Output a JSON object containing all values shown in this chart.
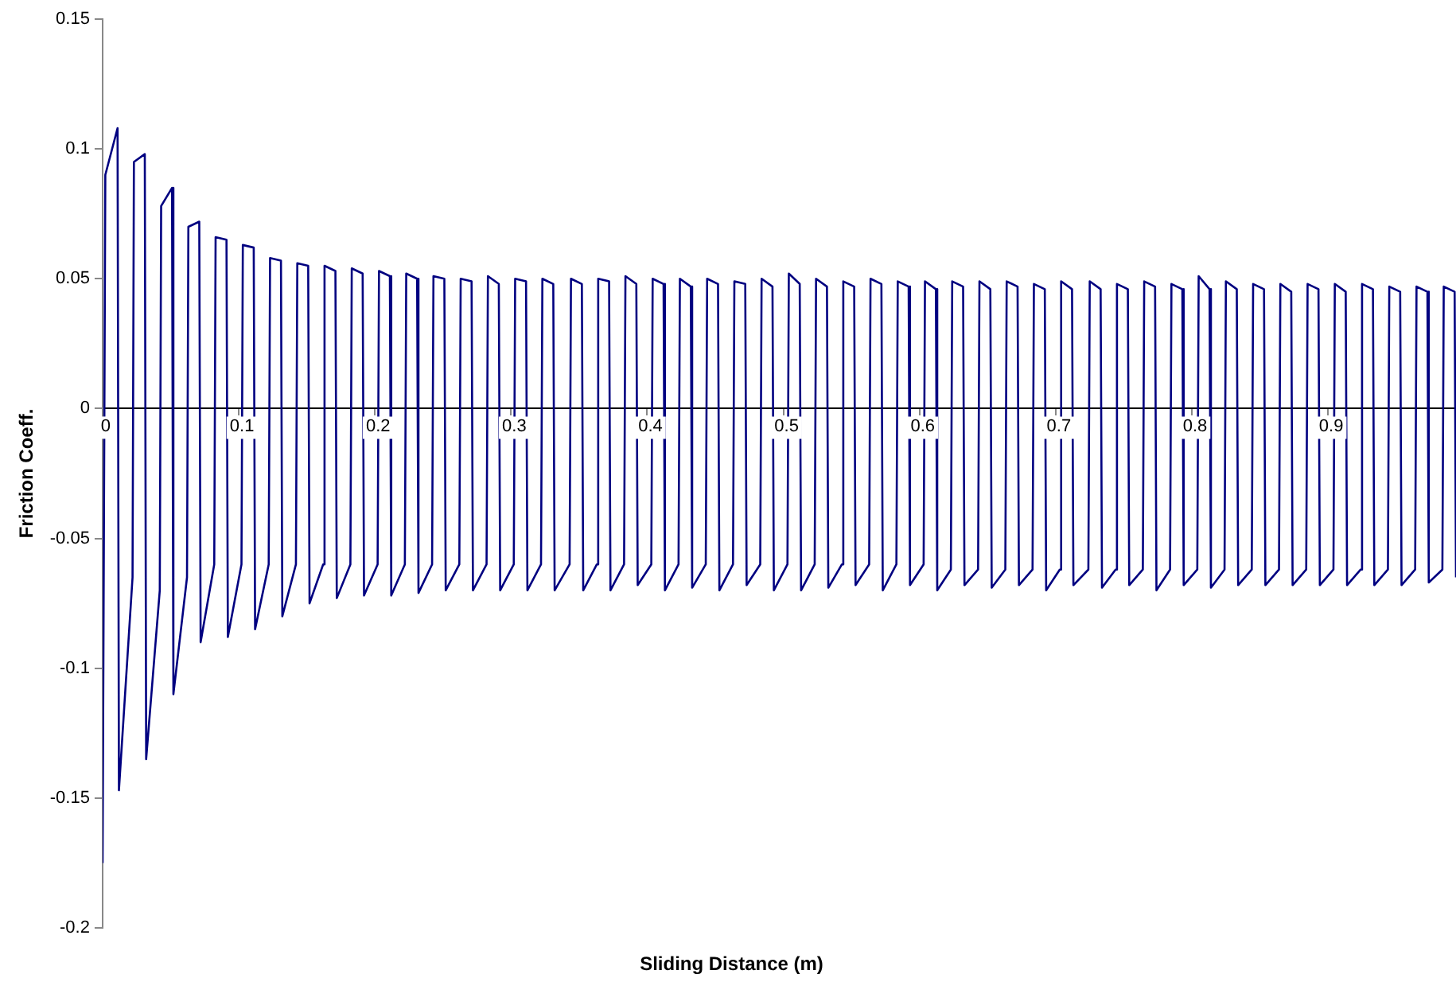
{
  "chart_data": {
    "type": "line",
    "xlabel": "Sliding Distance (m)",
    "ylabel": "Friction Coeff.",
    "xlim": [
      0,
      0.994
    ],
    "xticks": [
      0,
      0.1,
      0.2,
      0.3,
      0.4,
      0.5,
      0.6,
      0.7,
      0.8,
      0.9
    ],
    "ylim": [
      -0.2,
      0.15
    ],
    "yticks": [
      -0.2,
      -0.15,
      -0.1,
      -0.05,
      0,
      0.05,
      0.1,
      0.15
    ],
    "grid": false,
    "legend": false,
    "marker": "none",
    "line_style": "solid",
    "series": [
      {
        "color": "#000080",
        "x": [
          0,
          0.002,
          0.011,
          0.012,
          0.022,
          0.023,
          0.031,
          0.032,
          0.042,
          0.043,
          0.051,
          0.052,
          0.062,
          0.063,
          0.071,
          0.072,
          0.082,
          0.083,
          0.091,
          0.092,
          0.102,
          0.103,
          0.111,
          0.112,
          0.122,
          0.123,
          0.131,
          0.132,
          0.142,
          0.143,
          0.151,
          0.152,
          0.162,
          0.163,
          0.171,
          0.172,
          0.182,
          0.183,
          0.191,
          0.192,
          0.202,
          0.203,
          0.211,
          0.212,
          0.222,
          0.223,
          0.231,
          0.232,
          0.242,
          0.243,
          0.251,
          0.252,
          0.262,
          0.263,
          0.271,
          0.272,
          0.282,
          0.283,
          0.291,
          0.292,
          0.302,
          0.303,
          0.311,
          0.312,
          0.322,
          0.323,
          0.331,
          0.332,
          0.343,
          0.344,
          0.352,
          0.353,
          0.363,
          0.364,
          0.372,
          0.373,
          0.383,
          0.384,
          0.392,
          0.393,
          0.403,
          0.404,
          0.412,
          0.413,
          0.423,
          0.424,
          0.432,
          0.433,
          0.443,
          0.444,
          0.452,
          0.453,
          0.463,
          0.464,
          0.472,
          0.473,
          0.483,
          0.484,
          0.492,
          0.493,
          0.503,
          0.504,
          0.512,
          0.513,
          0.523,
          0.524,
          0.532,
          0.533,
          0.543,
          0.544,
          0.552,
          0.553,
          0.563,
          0.564,
          0.572,
          0.573,
          0.583,
          0.584,
          0.592,
          0.593,
          0.603,
          0.604,
          0.612,
          0.613,
          0.623,
          0.624,
          0.632,
          0.633,
          0.643,
          0.644,
          0.652,
          0.653,
          0.663,
          0.664,
          0.672,
          0.673,
          0.683,
          0.684,
          0.692,
          0.693,
          0.703,
          0.704,
          0.712,
          0.713,
          0.724,
          0.725,
          0.733,
          0.734,
          0.744,
          0.745,
          0.753,
          0.754,
          0.764,
          0.765,
          0.773,
          0.774,
          0.784,
          0.785,
          0.793,
          0.794,
          0.804,
          0.805,
          0.813,
          0.814,
          0.824,
          0.825,
          0.833,
          0.834,
          0.844,
          0.845,
          0.853,
          0.854,
          0.864,
          0.865,
          0.873,
          0.874,
          0.884,
          0.885,
          0.893,
          0.894,
          0.904,
          0.905,
          0.913,
          0.914,
          0.924,
          0.925,
          0.933,
          0.934,
          0.944,
          0.945,
          0.953,
          0.954,
          0.964,
          0.965,
          0.973,
          0.974,
          0.984,
          0.985,
          0.993,
          0.994
        ],
        "values": [
          -0.175,
          0.09,
          0.108,
          -0.147,
          -0.065,
          0.095,
          0.098,
          -0.135,
          -0.07,
          0.078,
          0.085,
          -0.11,
          -0.065,
          0.07,
          0.072,
          -0.09,
          -0.06,
          0.066,
          0.065,
          -0.088,
          -0.06,
          0.063,
          0.062,
          -0.085,
          -0.06,
          0.058,
          0.057,
          -0.08,
          -0.06,
          0.056,
          0.055,
          -0.075,
          -0.06,
          0.055,
          0.053,
          -0.073,
          -0.06,
          0.054,
          0.052,
          -0.072,
          -0.06,
          0.053,
          0.051,
          -0.072,
          -0.06,
          0.052,
          0.05,
          -0.071,
          -0.06,
          0.051,
          0.05,
          -0.07,
          -0.06,
          0.05,
          0.049,
          -0.07,
          -0.06,
          0.051,
          0.048,
          -0.07,
          -0.06,
          0.05,
          0.049,
          -0.07,
          -0.06,
          0.05,
          0.048,
          -0.07,
          -0.06,
          0.05,
          0.048,
          -0.07,
          -0.06,
          0.05,
          0.049,
          -0.07,
          -0.06,
          0.051,
          0.048,
          -0.068,
          -0.06,
          0.05,
          0.048,
          -0.07,
          -0.06,
          0.05,
          0.047,
          -0.069,
          -0.06,
          0.05,
          0.048,
          -0.07,
          -0.06,
          0.049,
          0.048,
          -0.068,
          -0.06,
          0.05,
          0.047,
          -0.07,
          -0.06,
          0.052,
          0.048,
          -0.07,
          -0.06,
          0.05,
          0.047,
          -0.069,
          -0.06,
          0.049,
          0.047,
          -0.068,
          -0.06,
          0.05,
          0.048,
          -0.07,
          -0.06,
          0.049,
          0.047,
          -0.068,
          -0.06,
          0.049,
          0.046,
          -0.07,
          -0.062,
          0.049,
          0.047,
          -0.068,
          -0.062,
          0.049,
          0.046,
          -0.069,
          -0.062,
          0.049,
          0.047,
          -0.068,
          -0.062,
          0.048,
          0.046,
          -0.07,
          -0.062,
          0.049,
          0.046,
          -0.068,
          -0.062,
          0.049,
          0.046,
          -0.069,
          -0.062,
          0.048,
          0.046,
          -0.068,
          -0.062,
          0.049,
          0.047,
          -0.07,
          -0.062,
          0.048,
          0.046,
          -0.068,
          -0.062,
          0.051,
          0.046,
          -0.069,
          -0.062,
          0.049,
          0.046,
          -0.068,
          -0.062,
          0.048,
          0.046,
          -0.068,
          -0.062,
          0.048,
          0.045,
          -0.068,
          -0.062,
          0.048,
          0.046,
          -0.068,
          -0.062,
          0.048,
          0.045,
          -0.068,
          -0.062,
          0.048,
          0.046,
          -0.068,
          -0.062,
          0.047,
          0.045,
          -0.068,
          -0.062,
          0.047,
          0.045,
          -0.067,
          -0.062,
          0.047,
          0.045,
          -0.065
        ]
      }
    ]
  }
}
